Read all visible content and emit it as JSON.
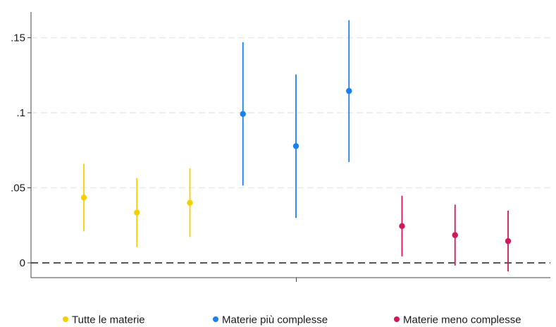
{
  "chart_data": {
    "type": "scatter",
    "subtype": "coefficient plot with confidence intervals",
    "title": "",
    "xlabel": "",
    "ylabel": "",
    "ylim": [
      -0.01,
      0.167
    ],
    "y_ticks": [
      {
        "value": 0.15,
        "label": ".15"
      },
      {
        "value": 0.1,
        "label": ".1"
      },
      {
        "value": 0.05,
        "label": ".05"
      },
      {
        "value": 0,
        "label": "0"
      }
    ],
    "grid": "horizontal dashed",
    "reference_line": {
      "y": 0,
      "style": "dashed"
    },
    "legend_position": "bottom",
    "series": [
      {
        "name": "Tutte le materie",
        "color": "#f5d000",
        "points": [
          {
            "x": 1,
            "estimate": 0.0435,
            "ci_low": 0.021,
            "ci_high": 0.066
          },
          {
            "x": 2,
            "estimate": 0.0335,
            "ci_low": 0.0105,
            "ci_high": 0.0565
          },
          {
            "x": 3,
            "estimate": 0.04,
            "ci_low": 0.0172,
            "ci_high": 0.063
          }
        ]
      },
      {
        "name": "Materie più complesse",
        "color": "#1a80f0",
        "points": [
          {
            "x": 4,
            "estimate": 0.0992,
            "ci_low": 0.0515,
            "ci_high": 0.147
          },
          {
            "x": 5,
            "estimate": 0.0778,
            "ci_low": 0.03,
            "ci_high": 0.1255
          },
          {
            "x": 6,
            "estimate": 0.1145,
            "ci_low": 0.0672,
            "ci_high": 0.1617
          }
        ]
      },
      {
        "name": "Materie meno complesse",
        "color": "#d0185a",
        "points": [
          {
            "x": 7,
            "estimate": 0.0245,
            "ci_low": 0.0043,
            "ci_high": 0.0447
          },
          {
            "x": 8,
            "estimate": 0.0185,
            "ci_low": -0.0018,
            "ci_high": 0.0388
          },
          {
            "x": 9,
            "estimate": 0.0145,
            "ci_low": -0.0057,
            "ci_high": 0.0348
          }
        ]
      }
    ]
  }
}
